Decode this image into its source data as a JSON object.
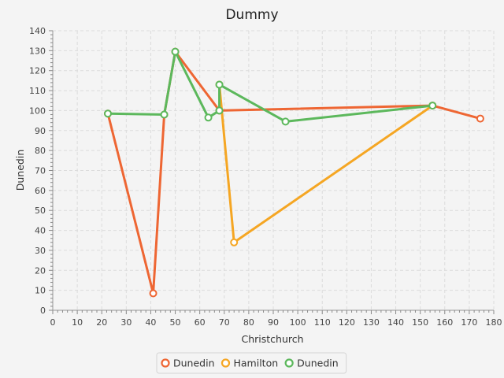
{
  "chart_data": {
    "type": "line",
    "title": "Dummy",
    "xlabel": "Christchurch",
    "ylabel": "Dunedin",
    "xlim": [
      0,
      180
    ],
    "ylim": [
      0,
      140
    ],
    "x_ticks": [
      0,
      10,
      20,
      30,
      40,
      50,
      60,
      70,
      80,
      90,
      100,
      110,
      120,
      130,
      140,
      150,
      160,
      170,
      180
    ],
    "y_ticks": [
      0,
      10,
      20,
      30,
      40,
      50,
      60,
      70,
      80,
      90,
      100,
      110,
      120,
      130,
      140
    ],
    "grid": true,
    "legend_position": "bottom",
    "series": [
      {
        "name": "Dunedin",
        "color": "#ee6633",
        "points": [
          [
            22.5,
            98.5
          ],
          [
            41,
            8.5
          ],
          [
            45.5,
            98
          ],
          [
            50,
            129.5
          ],
          [
            68,
            100
          ],
          [
            155,
            102.5
          ],
          [
            174.5,
            96
          ]
        ]
      },
      {
        "name": "Hamilton",
        "color": "#f5a623",
        "points": [
          [
            68,
            113
          ],
          [
            74,
            34
          ],
          [
            155,
            102.5
          ]
        ]
      },
      {
        "name": "Dunedin",
        "color": "#5cb85c",
        "points": [
          [
            22.5,
            98.5
          ],
          [
            45.5,
            98
          ],
          [
            50,
            129.5
          ],
          [
            63.5,
            96.5
          ],
          [
            68,
            100
          ],
          [
            68,
            113
          ],
          [
            95,
            94.5
          ],
          [
            155,
            102.5
          ]
        ]
      }
    ]
  }
}
